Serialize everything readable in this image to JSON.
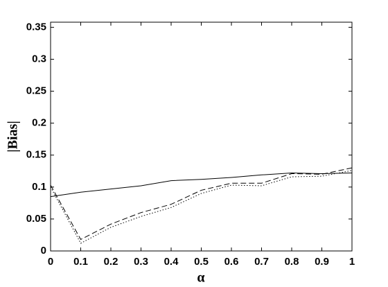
{
  "chart_data": {
    "type": "line",
    "x_label": "α",
    "y_label": "|Bias|",
    "x": [
      0,
      0.1,
      0.2,
      0.3,
      0.4,
      0.5,
      0.6,
      0.7,
      0.8,
      0.9,
      1
    ],
    "series": [
      {
        "color": "#000000",
        "line_style": "solid",
        "values": [
          0.085,
          0.092,
          0.097,
          0.102,
          0.11,
          0.112,
          0.115,
          0.119,
          0.122,
          0.121,
          0.122
        ]
      },
      {
        "color": "#000000",
        "line_style": "dashed",
        "values": [
          0.103,
          0.018,
          0.042,
          0.06,
          0.073,
          0.095,
          0.106,
          0.106,
          0.121,
          0.12,
          0.13
        ]
      },
      {
        "color": "#000000",
        "line_style": "dotted",
        "values": [
          0.1,
          0.012,
          0.037,
          0.054,
          0.068,
          0.09,
          0.103,
          0.102,
          0.116,
          0.117,
          0.126
        ]
      }
    ],
    "xlim": [
      0,
      1
    ],
    "xticks": [
      0,
      0.1,
      0.2,
      0.3,
      0.4,
      0.5,
      0.6,
      0.7,
      0.8,
      0.9,
      1
    ],
    "ylim": [
      0,
      0.358
    ],
    "yticks": [
      0,
      0.05,
      0.1,
      0.15,
      0.2,
      0.25,
      0.3,
      0.35
    ],
    "grid": false
  }
}
